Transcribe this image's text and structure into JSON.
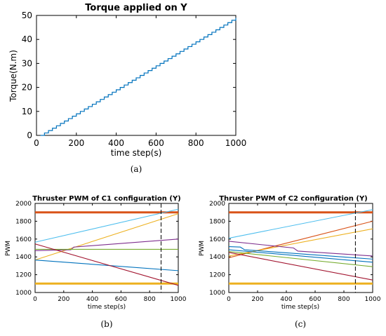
{
  "captions": {
    "a": "(a)",
    "b": "(b)",
    "c": "(c)"
  },
  "chart_data": [
    {
      "type": "line",
      "title": "Torque applied on Y",
      "xlabel": "time step(s)",
      "ylabel": "Torque(N.m)",
      "xlim": [
        0,
        1000
      ],
      "ylim": [
        0,
        50
      ],
      "xticks": [
        "0",
        "200",
        "400",
        "600",
        "800",
        "1000"
      ],
      "yticks": [
        "0",
        "10",
        "20",
        "30",
        "40",
        "50"
      ],
      "grid": false,
      "color": "#0072BD",
      "series": [
        {
          "style": "staircase",
          "x_start": 20,
          "x_end": 1000,
          "step_width": 20,
          "y_start": 0,
          "y_end": 49,
          "step_height": 1
        }
      ]
    },
    {
      "type": "line",
      "title": "Thruster PWM of C1 configuration (Y)",
      "xlabel": "time step(s)",
      "ylabel": "PWM",
      "xlim": [
        0,
        1000
      ],
      "ylim": [
        1000,
        2000
      ],
      "xticks": [
        "0",
        "200",
        "400",
        "600",
        "800",
        "1000"
      ],
      "yticks": [
        "1000",
        "1200",
        "1400",
        "1600",
        "1800",
        "2000"
      ],
      "grid": false,
      "vline_x": 880,
      "series": [
        {
          "color": "#D95319",
          "points": [
            [
              0,
              1900
            ],
            [
              1000,
              1900
            ]
          ],
          "thick": true
        },
        {
          "color": "#EDB120",
          "points": [
            [
              0,
              1100
            ],
            [
              1000,
              1100
            ]
          ],
          "thick": true
        },
        {
          "color": "#4DBEEE",
          "points": [
            [
              0,
              1565
            ],
            [
              1000,
              1935
            ]
          ]
        },
        {
          "color": "#EDB120",
          "points": [
            [
              0,
              1365
            ],
            [
              1000,
              1885
            ]
          ]
        },
        {
          "color": "#7E2F8E",
          "points": [
            [
              0,
              1470
            ],
            [
              250,
              1480
            ],
            [
              270,
              1510
            ],
            [
              1000,
              1600
            ]
          ]
        },
        {
          "color": "#77AC30",
          "points": [
            [
              0,
              1485
            ],
            [
              1000,
              1485
            ]
          ]
        },
        {
          "color": "#0072BD",
          "points": [
            [
              0,
              1365
            ],
            [
              1000,
              1245
            ]
          ]
        },
        {
          "color": "#A2142F",
          "points": [
            [
              0,
              1545
            ],
            [
              1000,
              1080
            ]
          ]
        }
      ]
    },
    {
      "type": "line",
      "title": "Thruster PWM of C2 configuration (Y)",
      "xlabel": "time step(s)",
      "ylabel": "PWM",
      "xlim": [
        0,
        1000
      ],
      "ylim": [
        1000,
        2000
      ],
      "xticks": [
        "0",
        "200",
        "400",
        "600",
        "800",
        "1000"
      ],
      "yticks": [
        "1000",
        "1200",
        "1400",
        "1600",
        "1800",
        "2000"
      ],
      "grid": false,
      "vline_x": 880,
      "series": [
        {
          "color": "#D95319",
          "points": [
            [
              0,
              1900
            ],
            [
              1000,
              1900
            ]
          ],
          "thick": true
        },
        {
          "color": "#EDB120",
          "points": [
            [
              0,
              1100
            ],
            [
              1000,
              1100
            ]
          ],
          "thick": true
        },
        {
          "color": "#4DBEEE",
          "points": [
            [
              0,
              1610
            ],
            [
              1000,
              1930
            ]
          ]
        },
        {
          "color": "#D95319",
          "points": [
            [
              0,
              1390
            ],
            [
              1000,
              1800
            ]
          ]
        },
        {
          "color": "#EDB120",
          "points": [
            [
              0,
              1410
            ],
            [
              1000,
              1715
            ]
          ]
        },
        {
          "color": "#7E2F8E",
          "points": [
            [
              0,
              1575
            ],
            [
              450,
              1500
            ],
            [
              480,
              1465
            ],
            [
              1000,
              1410
            ]
          ]
        },
        {
          "color": "#0072BD",
          "points": [
            [
              0,
              1515
            ],
            [
              80,
              1510
            ],
            [
              110,
              1480
            ],
            [
              1000,
              1375
            ]
          ]
        },
        {
          "color": "#0072BD",
          "points": [
            [
              0,
              1480
            ],
            [
              1000,
              1340
            ]
          ]
        },
        {
          "color": "#77AC30",
          "points": [
            [
              0,
              1460
            ],
            [
              1000,
              1290
            ]
          ]
        },
        {
          "color": "#A2142F",
          "points": [
            [
              0,
              1450
            ],
            [
              1000,
              1140
            ]
          ]
        }
      ]
    }
  ]
}
